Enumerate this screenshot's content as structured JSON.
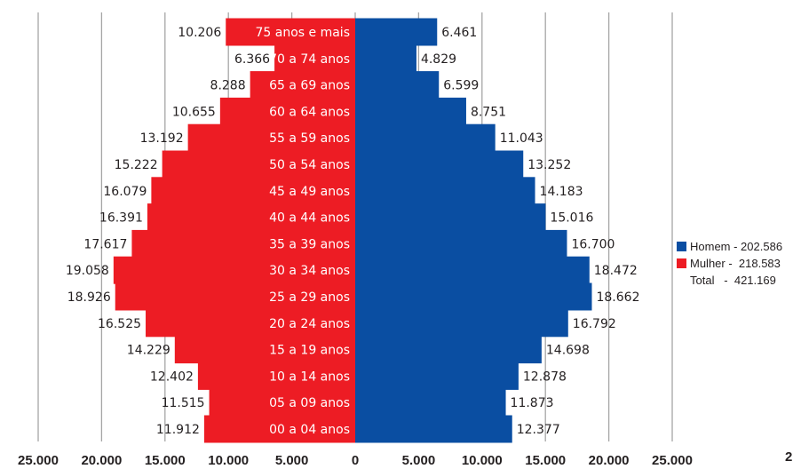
{
  "chart_data": {
    "type": "bar",
    "orientation": "horizontal-population-pyramid",
    "categories": [
      "00 a 04 anos",
      "05 a 09 anos",
      "10 a 14 anos",
      "15 a 19 anos",
      "20 a 24 anos",
      "25 a 29 anos",
      "30 a 34 anos",
      "35 a 39 anos",
      "40 a 44 anos",
      "45 a 49 anos",
      "50 a 54 anos",
      "55 a 59 anos",
      "60 a 64 anos",
      "65 a 69 anos",
      "70 a 74 anos",
      "75 anos e mais"
    ],
    "series": [
      {
        "name": "Mulher",
        "side": "left",
        "color": "#ed1c24",
        "values": [
          11912,
          11515,
          12402,
          14229,
          16525,
          18926,
          19058,
          17617,
          16391,
          16079,
          15222,
          13192,
          10655,
          8288,
          6366,
          10206
        ],
        "labels": [
          "11.912",
          "11.515",
          "12.402",
          "14.229",
          "16.525",
          "18.926",
          "19.058",
          "17.617",
          "16.391",
          "16.079",
          "15.222",
          "13.192",
          "10.655",
          "8.288",
          "6.366",
          "10.206"
        ]
      },
      {
        "name": "Homem",
        "side": "right",
        "color": "#0a4ea2",
        "values": [
          12377,
          11873,
          12878,
          14698,
          16792,
          18662,
          18472,
          16700,
          15016,
          14183,
          13252,
          11043,
          8751,
          6599,
          4829,
          6461
        ],
        "labels": [
          "12.377",
          "11.873",
          "12.878",
          "14.698",
          "16.792",
          "18.662",
          "18.472",
          "16.700",
          "15.016",
          "14.183",
          "13.252",
          "11.043",
          "8.751",
          "6.599",
          "4.829",
          "6.461"
        ]
      }
    ],
    "xlim": [
      -25000,
      25000
    ],
    "xticks": [
      -25000,
      -20000,
      -15000,
      -10000,
      -5000,
      0,
      5000,
      10000,
      15000,
      20000,
      25000
    ],
    "xtick_labels": [
      "25.000",
      "20.000",
      "15.000",
      "10.000",
      "5.000",
      "0",
      "5.000",
      "10.000",
      "15.000",
      "20.000",
      "25.000"
    ],
    "grid": "vertical",
    "legend_position": "right",
    "title": "",
    "xlabel": "",
    "ylabel": ""
  },
  "legend": {
    "homem": "Homem - 202.586",
    "mulher": "Mulher -  218.583",
    "total": "Total   -  421.169"
  },
  "corner_mark": "2",
  "colors": {
    "mulher": "#ed1c24",
    "homem": "#0a4ea2",
    "grid": "#a6a6a6"
  }
}
